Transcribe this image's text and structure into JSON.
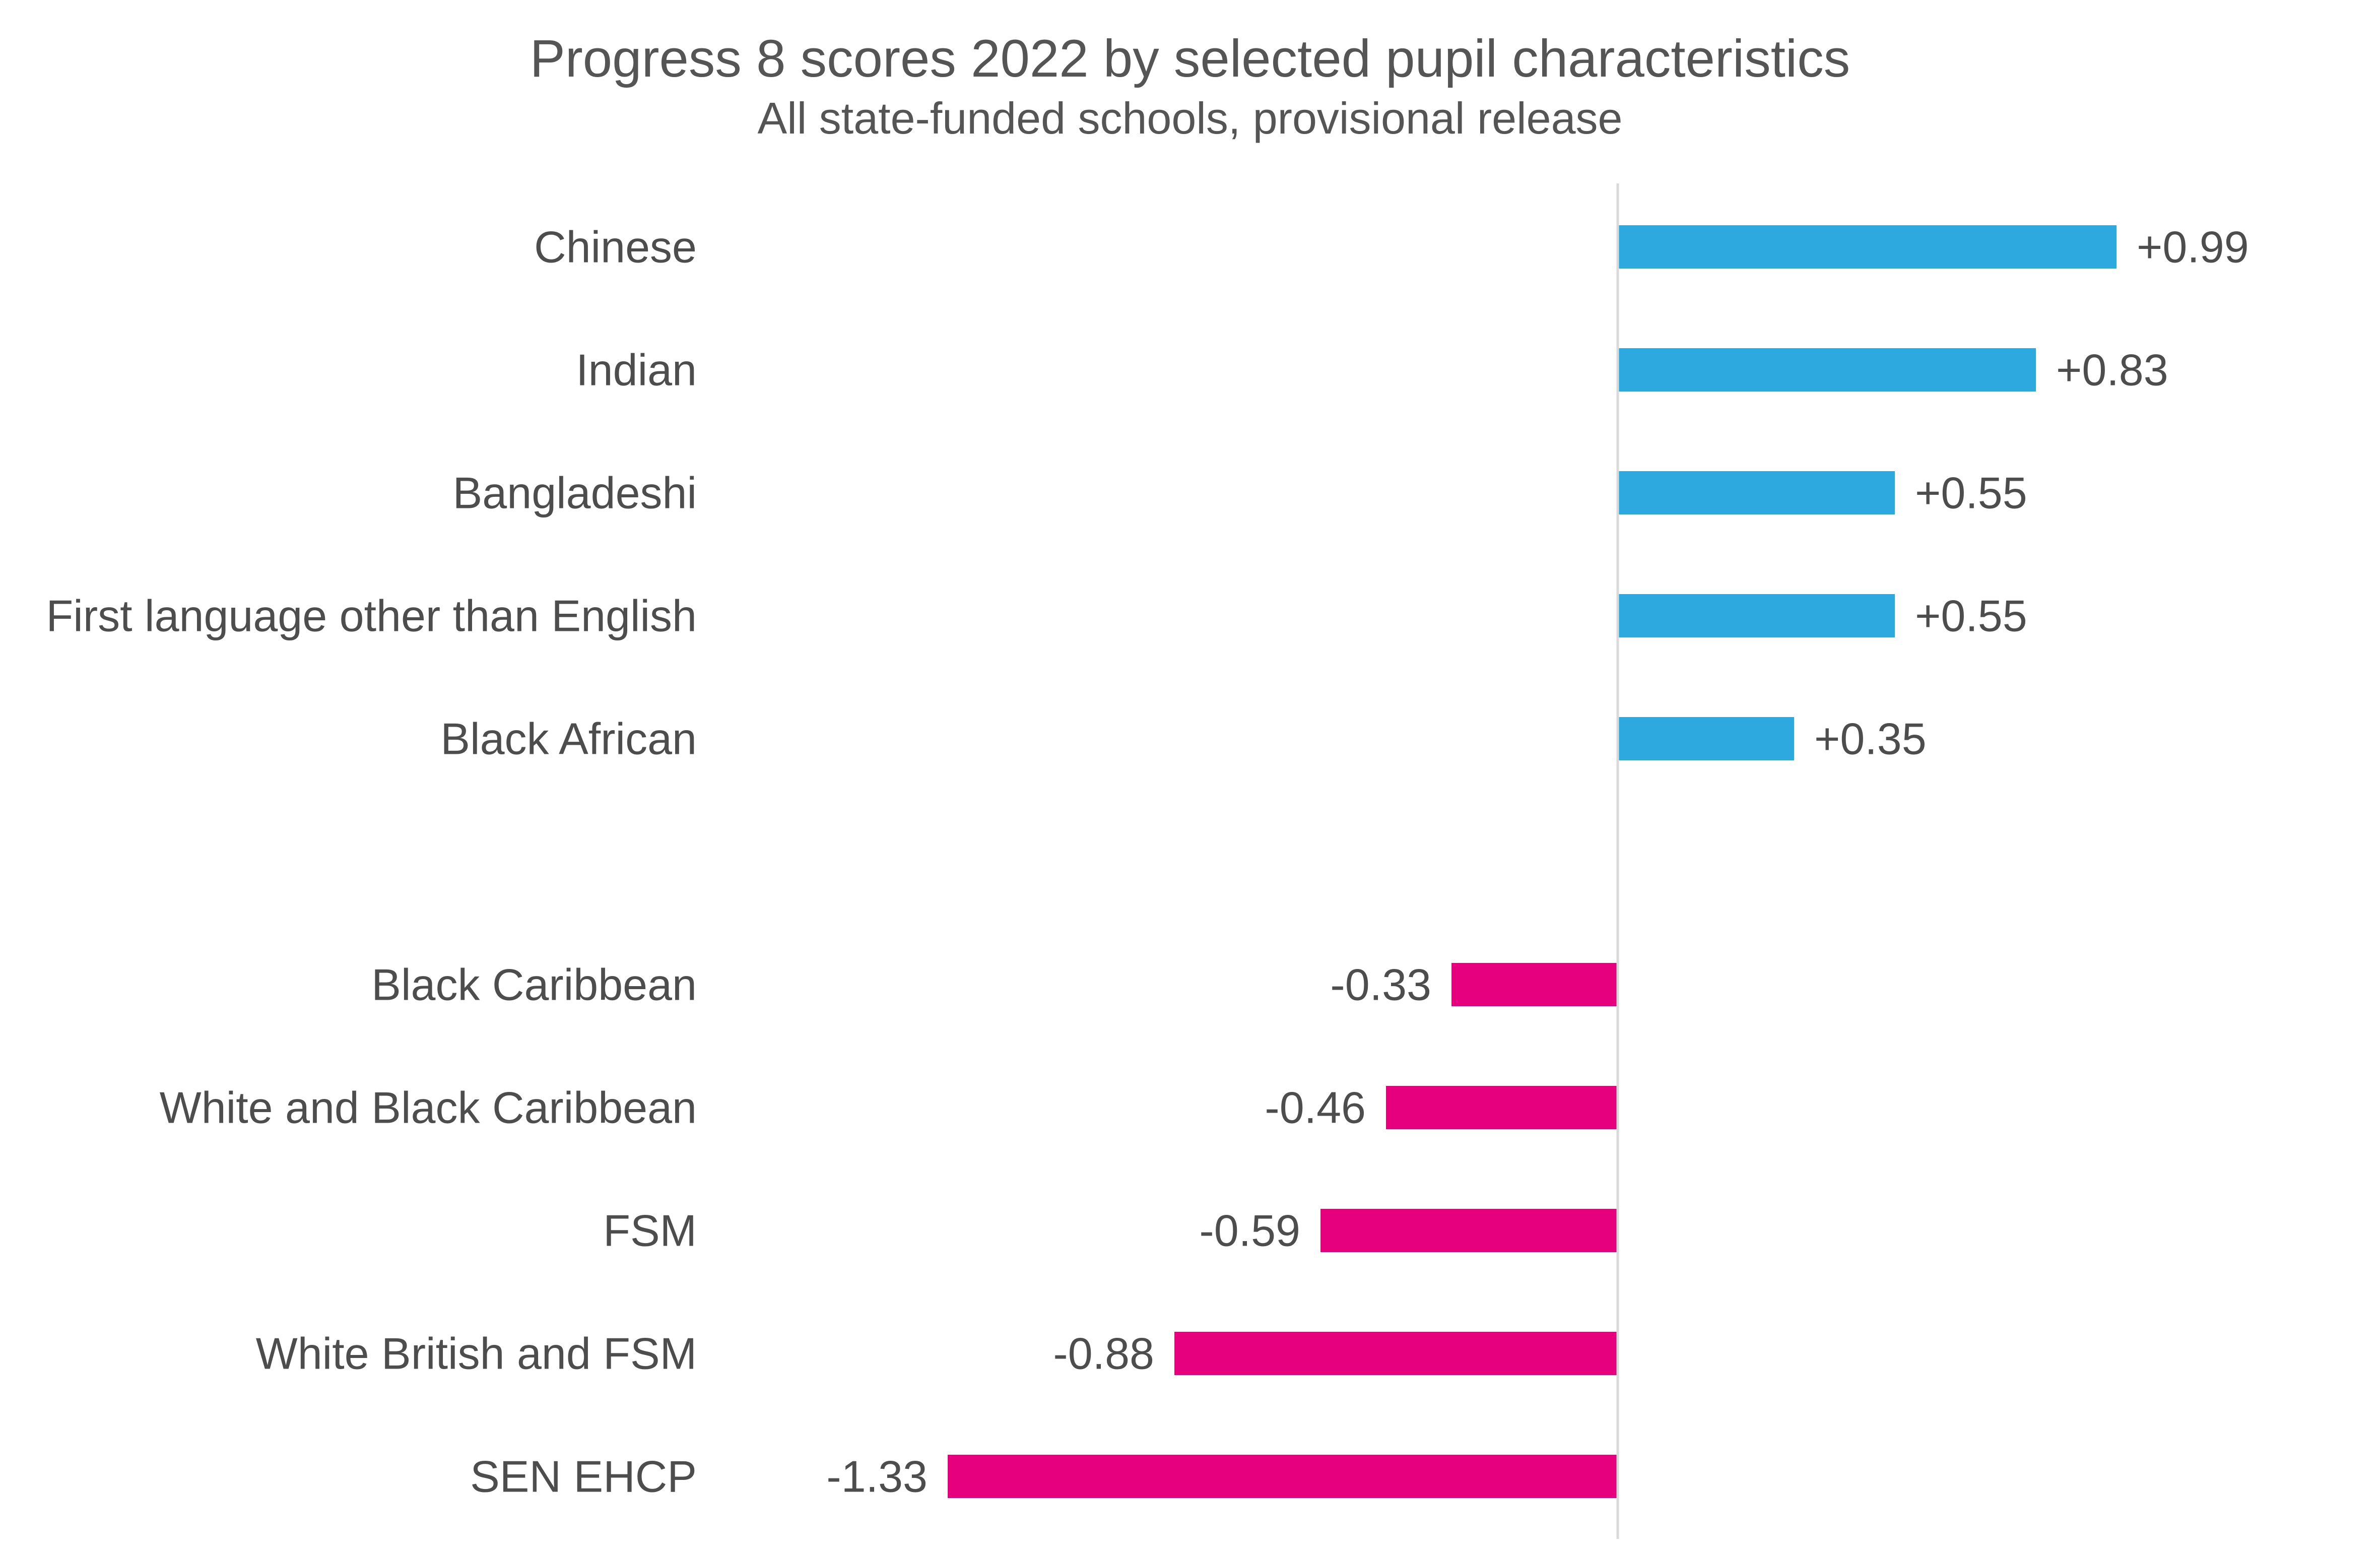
{
  "chart_data": {
    "type": "bar",
    "orientation": "horizontal",
    "title": "Progress 8 scores 2022 by selected pupil characteristics",
    "subtitle": "All state-funded schools, provisional release",
    "xlabel": "",
    "ylabel": "",
    "xlim": [
      -1.33,
      1.33
    ],
    "grid": false,
    "legend": "none",
    "categories": [
      "Chinese",
      "Indian",
      "Bangladeshi",
      "First language other than English",
      "Black African",
      "",
      "Black Caribbean",
      "White and Black Caribbean",
      "FSM",
      "White British and FSM",
      "SEN EHCP"
    ],
    "values": [
      0.99,
      0.83,
      0.55,
      0.55,
      0.35,
      null,
      -0.33,
      -0.46,
      -0.59,
      -0.88,
      -1.33
    ],
    "value_labels": [
      "+0.99",
      "+0.83",
      "+0.55",
      "+0.55",
      "+0.35",
      "",
      "-0.33",
      "-0.46",
      "-0.59",
      "-0.88",
      "-1.33"
    ],
    "colors": {
      "positive": "#2ea9e0",
      "negative": "#e6007e",
      "axis": "#d9d9d9"
    }
  }
}
